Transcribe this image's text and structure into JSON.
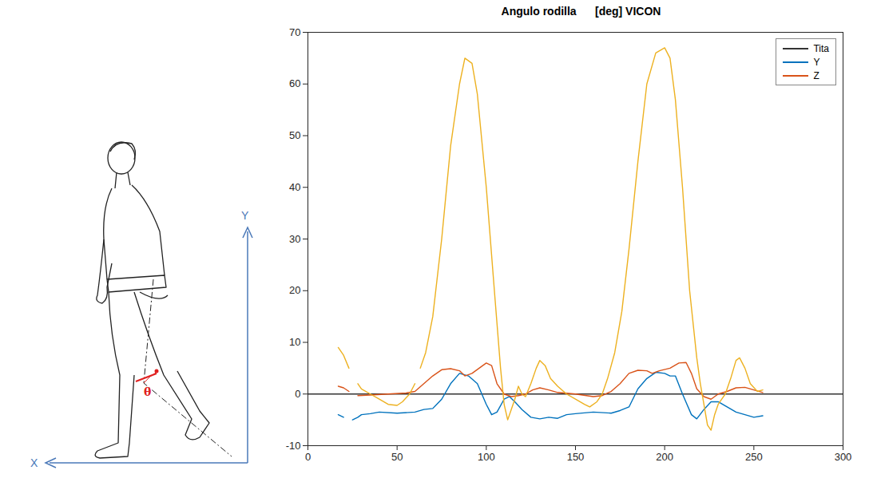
{
  "chart_data": {
    "type": "line",
    "title": "Angulo rodilla      [deg] VICON",
    "xlim": [
      0,
      300
    ],
    "xticks": [
      0,
      50,
      100,
      150,
      200,
      250,
      300
    ],
    "ylim": [
      -10,
      70
    ],
    "yticks": [
      -10,
      0,
      10,
      20,
      30,
      40,
      50,
      60,
      70
    ],
    "grid": false,
    "legend": "upper right",
    "series": [
      {
        "name": "Tita",
        "color": "#333333",
        "x": [
          0,
          300
        ],
        "values": [
          0,
          0
        ]
      },
      {
        "name": "Y",
        "color": "#0072bd",
        "x": [
          17,
          20,
          22,
          25,
          28,
          30,
          35,
          40,
          50,
          60,
          65,
          70,
          75,
          80,
          85,
          90,
          95,
          100,
          103,
          106,
          110,
          113,
          116,
          120,
          125,
          130,
          135,
          140,
          145,
          150,
          160,
          170,
          175,
          180,
          185,
          190,
          195,
          200,
          203,
          206,
          210,
          215,
          218,
          222,
          226,
          230,
          235,
          240,
          245,
          250,
          255
        ],
        "values": [
          -4,
          -4.5,
          null,
          -5,
          -4.5,
          -4,
          -3.8,
          -3.5,
          -3.7,
          -3.5,
          -3,
          -2.8,
          -1,
          2,
          4,
          3.5,
          2,
          -2,
          -4,
          -3.5,
          -1,
          -0.5,
          -1.5,
          -3,
          -4.5,
          -4.8,
          -4.5,
          -4.7,
          -4,
          -3.8,
          -3.5,
          -3.7,
          -3.2,
          -2.5,
          1,
          3,
          4.2,
          4,
          3.5,
          3.5,
          0,
          -4,
          -4.8,
          -3,
          -1.5,
          -1.5,
          -2.5,
          -3.5,
          -4,
          -4.5,
          -4.2
        ]
      },
      {
        "name": "Z",
        "color": "#d95319",
        "x": [
          17,
          20,
          23,
          25,
          28,
          35,
          45,
          55,
          60,
          65,
          70,
          75,
          80,
          85,
          88,
          92,
          96,
          100,
          103,
          106,
          110,
          114,
          118,
          122,
          126,
          130,
          135,
          140,
          150,
          160,
          165,
          170,
          175,
          180,
          185,
          190,
          193,
          197,
          203,
          208,
          212,
          215,
          218,
          222,
          226,
          230,
          235,
          240,
          245,
          250,
          255
        ],
        "values": [
          1.5,
          1.2,
          0.5,
          null,
          -0.3,
          -0.2,
          0,
          0.2,
          0.5,
          2,
          3.5,
          4.7,
          4.9,
          4.5,
          3.5,
          4,
          5,
          6,
          5.5,
          2,
          0,
          -0.5,
          -0.3,
          0,
          0.8,
          1.2,
          0.8,
          0.3,
          0,
          -0.5,
          -0.3,
          0.5,
          2,
          4,
          4.6,
          4.5,
          4,
          4.5,
          5,
          6,
          6.1,
          4,
          1,
          -0.5,
          -1,
          0,
          0.5,
          1.2,
          1.3,
          0.8,
          0.3
        ]
      },
      {
        "name": null,
        "color": "#edb120",
        "x": [
          17,
          20,
          23,
          25,
          28,
          30,
          35,
          40,
          45,
          50,
          53,
          57,
          60,
          61,
          63,
          66,
          70,
          75,
          80,
          85,
          88,
          92,
          95,
          100,
          105,
          108,
          110,
          112,
          114,
          116,
          118,
          120,
          122,
          125,
          128,
          130,
          133,
          136,
          140,
          145,
          150,
          155,
          158,
          162,
          165,
          168,
          172,
          176,
          180,
          185,
          190,
          195,
          200,
          203,
          206,
          210,
          214,
          218,
          220,
          222,
          224,
          226,
          228,
          230,
          232,
          234,
          237,
          240,
          242,
          245,
          248,
          252,
          255
        ],
        "values": [
          9,
          7.5,
          5,
          null,
          2,
          1,
          0,
          -1,
          -2,
          -2.2,
          -1.5,
          0,
          2,
          null,
          5,
          8,
          15,
          30,
          48,
          60,
          65,
          64,
          58,
          40,
          18,
          5,
          -2,
          -5,
          -3,
          -1,
          1.5,
          0,
          -0.5,
          2,
          5,
          6.5,
          5.5,
          3,
          1.5,
          0,
          -1,
          -2,
          -2.5,
          -1.5,
          0,
          3,
          8,
          16,
          28,
          45,
          60,
          66,
          67,
          65,
          57,
          40,
          20,
          7,
          2,
          -2,
          -6,
          -7,
          -4,
          -2,
          -1,
          0,
          3,
          6.5,
          7,
          5,
          2,
          0.5,
          0.8
        ]
      }
    ]
  },
  "figure": {
    "x_axis_label": "X",
    "y_axis_label": "Y",
    "angle_label": "θ"
  }
}
